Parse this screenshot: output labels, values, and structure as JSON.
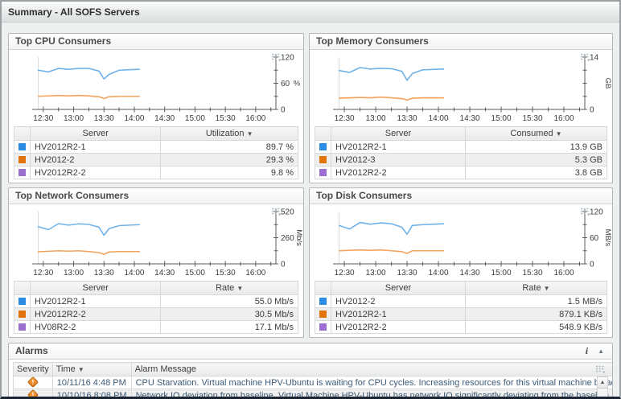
{
  "page": {
    "title": "Summary - All SOFS Servers"
  },
  "icons": {
    "sort_desc": "▼",
    "info": "i",
    "collapse": "▲",
    "scroll_up": "▲",
    "warning_glyph": "!",
    "chart_options": "list-with-arrow"
  },
  "colors": {
    "series_blue": "#6fb2ea",
    "series_orange": "#f3a35b",
    "swatch_blue": "#2b8ce4",
    "swatch_orange": "#e2750a",
    "swatch_purple": "#9a6fd0",
    "warning": "#e2750a"
  },
  "panels": [
    {
      "title": "Top CPU Consumers",
      "chart_data": {
        "type": "line",
        "unit": "%",
        "unit_rotated": false,
        "ylim": [
          0,
          120
        ],
        "ytick_labels": [
          [
            0,
            "0"
          ],
          [
            60,
            "60"
          ],
          [
            120,
            "120"
          ]
        ],
        "yticks_minor": [
          30,
          90
        ],
        "x_minutes_range": [
          743,
          980
        ],
        "xticks": [
          [
            750,
            "12:30"
          ],
          [
            780,
            "13:00"
          ],
          [
            810,
            "13:30"
          ],
          [
            840,
            "14:00"
          ],
          [
            870,
            "14:30"
          ],
          [
            900,
            "15:00"
          ],
          [
            930,
            "15:30"
          ],
          [
            960,
            "16:00"
          ]
        ],
        "data_start_minute": 745,
        "x": [
          745,
          755,
          765,
          775,
          785,
          795,
          805,
          810,
          815,
          825,
          835,
          845
        ],
        "series": [
          {
            "name": "HV2012R2-1",
            "color": "#6fb2ea",
            "values": [
              90,
              86,
              94,
              92,
              94,
              94,
              88,
              70,
              80,
              90,
              91,
              92
            ]
          },
          {
            "name": "HV2012-2",
            "color": "#f3a35b",
            "values": [
              30,
              31,
              32,
              31,
              32,
              31,
              29,
              25,
              29,
              30,
              30,
              30
            ]
          }
        ]
      },
      "table": {
        "server_label": "Server",
        "value_label": "Utilization",
        "rows": [
          {
            "swatch": "#2b8ce4",
            "server": "HV2012R2-1",
            "value": "89.7 %"
          },
          {
            "swatch": "#e2750a",
            "server": "HV2012-2",
            "value": "29.3 %"
          },
          {
            "swatch": "#9a6fd0",
            "server": "HV2012R2-2",
            "value": "9.8 %"
          }
        ]
      }
    },
    {
      "title": "Top Memory Consumers",
      "chart_data": {
        "type": "line",
        "unit": "GB",
        "unit_rotated": true,
        "ylim": [
          0,
          14
        ],
        "ytick_labels": [
          [
            0,
            "0"
          ],
          [
            14,
            "14"
          ]
        ],
        "yticks_minor": [
          3.5,
          7,
          10.5
        ],
        "x_minutes_range": [
          743,
          980
        ],
        "xticks": [
          [
            750,
            "12:30"
          ],
          [
            780,
            "13:00"
          ],
          [
            810,
            "13:30"
          ],
          [
            840,
            "14:00"
          ],
          [
            870,
            "14:30"
          ],
          [
            900,
            "15:00"
          ],
          [
            930,
            "15:30"
          ],
          [
            960,
            "16:00"
          ]
        ],
        "data_start_minute": 745,
        "x": [
          745,
          755,
          765,
          775,
          785,
          795,
          805,
          810,
          815,
          825,
          835,
          845
        ],
        "series": [
          {
            "name": "HV2012R2-1",
            "color": "#6fb2ea",
            "values": [
              10.4,
              9.9,
              11.2,
              10.8,
              11.0,
              10.9,
              10.2,
              7.8,
              9.6,
              10.6,
              10.7,
              10.8
            ]
          },
          {
            "name": "HV2012-3",
            "color": "#f3a35b",
            "values": [
              3.0,
              3.1,
              3.2,
              3.1,
              3.3,
              3.1,
              2.9,
              2.5,
              3.0,
              3.1,
              3.1,
              3.1
            ]
          }
        ]
      },
      "table": {
        "server_label": "Server",
        "value_label": "Consumed",
        "rows": [
          {
            "swatch": "#2b8ce4",
            "server": "HV2012R2-1",
            "value": "13.9 GB"
          },
          {
            "swatch": "#e2750a",
            "server": "HV2012-3",
            "value": "5.3 GB"
          },
          {
            "swatch": "#9a6fd0",
            "server": "HV2012R2-2",
            "value": "3.8 GB"
          }
        ]
      }
    },
    {
      "title": "Top Network Consumers",
      "chart_data": {
        "type": "line",
        "unit": "Mb/s",
        "unit_rotated": true,
        "ylim": [
          0,
          520
        ],
        "ytick_labels": [
          [
            0,
            "0"
          ],
          [
            260,
            "260"
          ],
          [
            520,
            "520"
          ]
        ],
        "yticks_minor": [
          130,
          390
        ],
        "x_minutes_range": [
          743,
          980
        ],
        "xticks": [
          [
            750,
            "12:30"
          ],
          [
            780,
            "13:00"
          ],
          [
            810,
            "13:30"
          ],
          [
            840,
            "14:00"
          ],
          [
            870,
            "14:30"
          ],
          [
            900,
            "15:00"
          ],
          [
            930,
            "15:30"
          ],
          [
            960,
            "16:00"
          ]
        ],
        "data_start_minute": 745,
        "x": [
          745,
          755,
          765,
          775,
          785,
          795,
          805,
          810,
          815,
          825,
          835,
          845
        ],
        "series": [
          {
            "name": "HV2012R2-1",
            "color": "#6fb2ea",
            "values": [
              370,
              340,
              400,
              385,
              398,
              392,
              365,
              285,
              350,
              380,
              385,
              390
            ]
          },
          {
            "name": "HV2012R2-2",
            "color": "#f3a35b",
            "values": [
              120,
              125,
              130,
              126,
              130,
              122,
              112,
              95,
              118,
              122,
              122,
              122
            ]
          }
        ]
      },
      "table": {
        "server_label": "Server",
        "value_label": "Rate",
        "rows": [
          {
            "swatch": "#2b8ce4",
            "server": "HV2012R2-1",
            "value": "55.0 Mb/s"
          },
          {
            "swatch": "#e2750a",
            "server": "HV2012R2-2",
            "value": "30.5 Mb/s"
          },
          {
            "swatch": "#9a6fd0",
            "server": "HV08R2-2",
            "value": "17.1 Mb/s"
          }
        ]
      }
    },
    {
      "title": "Top Disk Consumers",
      "chart_data": {
        "type": "line",
        "unit": "MB/s",
        "unit_rotated": true,
        "ylim": [
          0,
          120
        ],
        "ytick_labels": [
          [
            0,
            "0"
          ],
          [
            60,
            "60"
          ],
          [
            120,
            "120"
          ]
        ],
        "yticks_minor": [
          30,
          90
        ],
        "x_minutes_range": [
          743,
          980
        ],
        "xticks": [
          [
            750,
            "12:30"
          ],
          [
            780,
            "13:00"
          ],
          [
            810,
            "13:30"
          ],
          [
            840,
            "14:00"
          ],
          [
            870,
            "14:30"
          ],
          [
            900,
            "15:00"
          ],
          [
            930,
            "15:30"
          ],
          [
            960,
            "16:00"
          ]
        ],
        "data_start_minute": 745,
        "x": [
          745,
          755,
          765,
          775,
          785,
          795,
          805,
          810,
          815,
          825,
          835,
          845
        ],
        "series": [
          {
            "name": "HV2012-2",
            "color": "#6fb2ea",
            "values": [
              88,
              80,
              95,
              91,
              94,
              92,
              84,
              68,
              88,
              90,
              91,
              92
            ]
          },
          {
            "name": "HV2012R2-1",
            "color": "#f3a35b",
            "values": [
              30,
              31,
              32,
              31,
              32,
              30,
              28,
              24,
              30,
              30,
              30,
              30
            ]
          }
        ]
      },
      "table": {
        "server_label": "Server",
        "value_label": "Rate",
        "rows": [
          {
            "swatch": "#2b8ce4",
            "server": "HV2012-2",
            "value": "1.5 MB/s"
          },
          {
            "swatch": "#e2750a",
            "server": "HV2012R2-1",
            "value": "879.1 KB/s"
          },
          {
            "swatch": "#9a6fd0",
            "server": "HV2012R2-2",
            "value": "548.9 KB/s"
          }
        ]
      }
    }
  ],
  "alarms": {
    "title": "Alarms",
    "columns": {
      "severity": "Severity",
      "time": "Time",
      "message": "Alarm Message"
    },
    "rows": [
      {
        "severity": "warning",
        "time": "10/11/16 4:48 PM",
        "message": "CPU Starvation. Virtual machine HPV-Ubuntu is waiting for CPU cycles. Increasing resources for this virtual machine by adjusting t"
      },
      {
        "severity": "warning",
        "time": "10/10/16 8:08 PM",
        "message": "Network IO deviation from baseline. Virtual Machine HPV-Ubuntu has network IO significantly deviating from the baseline."
      }
    ]
  }
}
